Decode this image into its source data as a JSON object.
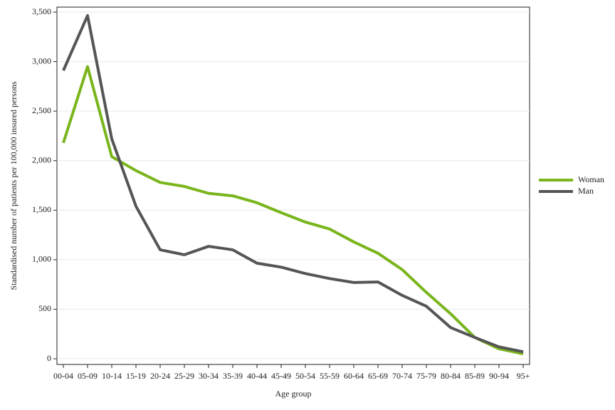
{
  "chart_data": {
    "type": "line",
    "x_label": "Age group",
    "y_label": "Standardised number of patients per 100,000 insured persons",
    "categories": [
      "00-04",
      "05-09",
      "10-14",
      "15-19",
      "20-24",
      "25-29",
      "30-34",
      "35-39",
      "40-44",
      "45-49",
      "50-54",
      "55-59",
      "60-64",
      "65-69",
      "70-74",
      "75-79",
      "80-84",
      "85-89",
      "90-94",
      "95+"
    ],
    "series": [
      {
        "name": "Woman",
        "color": "#7ab51d",
        "values": [
          2180,
          2950,
          2040,
          1900,
          1780,
          1740,
          1670,
          1645,
          1575,
          1475,
          1380,
          1310,
          1180,
          1065,
          900,
          670,
          455,
          215,
          100,
          50
        ]
      },
      {
        "name": "Man",
        "color": "#555555",
        "values": [
          2910,
          3465,
          2220,
          1540,
          1100,
          1050,
          1135,
          1100,
          965,
          925,
          860,
          810,
          770,
          775,
          640,
          530,
          315,
          215,
          120,
          70
        ]
      }
    ],
    "ylim": [
      0,
      3500
    ],
    "yticks": [
      0,
      500,
      {
        "value": 1000,
        "label": "1,000"
      },
      {
        "value": 1500,
        "label": "1,500"
      },
      {
        "value": 2000,
        "label": "2,000"
      },
      {
        "value": 2500,
        "label": "2,500"
      },
      {
        "value": 3000,
        "label": "3,000"
      },
      {
        "value": 3500,
        "label": "3,500"
      }
    ],
    "grid": true,
    "legend": "right"
  }
}
